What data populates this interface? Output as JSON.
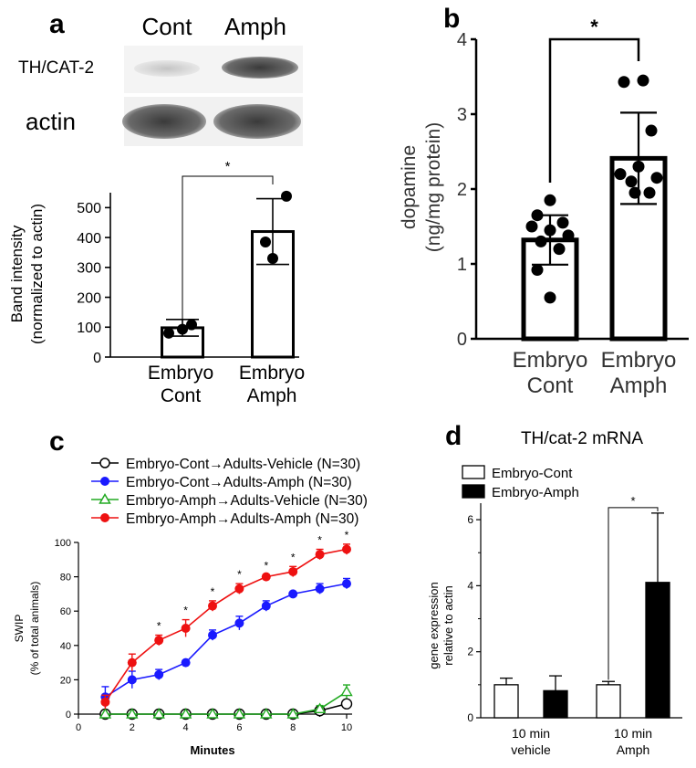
{
  "panels": {
    "a": "a",
    "b": "b",
    "c": "c",
    "d": "d"
  },
  "blot": {
    "lane_labels": [
      "Cont",
      "Amph"
    ],
    "row_labels": [
      "TH/CAT-2",
      "actin"
    ]
  },
  "chart_data": [
    {
      "id": "a",
      "type": "bar",
      "categories": [
        [
          "Embryo",
          "Cont"
        ],
        [
          "Embryo",
          "Amph"
        ]
      ],
      "values": [
        98,
        420
      ],
      "errors": [
        28,
        110
      ],
      "points": [
        [
          80,
          93,
          108
        ],
        [
          330,
          385,
          538
        ]
      ],
      "ylabel": [
        "Band intensity",
        "(normalized to actin)"
      ],
      "ylim": [
        0,
        550
      ],
      "yticks": [
        0,
        100,
        200,
        300,
        400,
        500
      ],
      "significance": "*",
      "colors": {
        "bar_fill": "#ffffff",
        "bar_edge": "#000000",
        "points": "#000000"
      }
    },
    {
      "id": "b",
      "type": "bar",
      "categories": [
        [
          "Embryo",
          "Cont"
        ],
        [
          "Embryo",
          "Amph"
        ]
      ],
      "values": [
        1.32,
        2.41
      ],
      "errors": [
        0.33,
        0.61
      ],
      "points": [
        [
          1.85,
          1.65,
          1.55,
          1.5,
          1.45,
          1.38,
          1.3,
          1.2,
          0.92,
          0.55
        ],
        [
          3.45,
          3.43,
          2.78,
          2.3,
          2.2,
          2.15,
          2.1,
          1.95,
          1.95
        ]
      ],
      "ylabel": [
        "dopamine",
        "(ng/mg protein)"
      ],
      "ylim": [
        0,
        4
      ],
      "yticks": [
        0,
        1,
        2,
        3,
        4
      ],
      "significance": "*",
      "colors": {
        "bar_fill": "#ffffff",
        "bar_edge": "#000000",
        "points": "#000000"
      }
    },
    {
      "id": "c",
      "type": "line",
      "x": [
        1,
        2,
        3,
        4,
        5,
        6,
        7,
        8,
        9,
        10
      ],
      "xlabel": "Minutes",
      "ylabel": [
        "SWIP",
        "(% of total animals)"
      ],
      "xlim": [
        0,
        10
      ],
      "ylim": [
        0,
        100
      ],
      "xticks": [
        0,
        2,
        4,
        6,
        8,
        10
      ],
      "yticks": [
        0,
        20,
        40,
        60,
        80,
        100
      ],
      "series": [
        {
          "name": "Embryo-Cont→Adults-Vehicle (N=30)",
          "color": "#000000",
          "marker": "circle-open",
          "values": [
            0,
            0,
            0,
            0,
            0,
            0,
            0,
            0,
            2,
            6
          ],
          "errors": [
            0,
            0,
            0,
            0,
            0,
            0,
            0,
            0,
            1,
            2
          ]
        },
        {
          "name": "Embryo-Cont→Adults-Amph (N=30)",
          "color": "#1a1aff",
          "marker": "circle",
          "values": [
            10,
            20,
            23,
            30,
            46,
            53,
            63,
            70,
            73,
            76
          ],
          "errors": [
            6,
            5,
            3,
            0,
            3,
            4,
            3,
            0,
            3,
            3
          ]
        },
        {
          "name": "Embryo-Amph→Adults-Vehicle (N=30)",
          "color": "#22aa22",
          "marker": "triangle-open",
          "values": [
            0,
            0,
            0,
            0,
            0,
            0,
            0,
            0,
            3,
            13
          ],
          "errors": [
            0,
            0,
            0,
            0,
            0,
            0,
            0,
            0,
            2,
            4
          ]
        },
        {
          "name": "Embryo-Amph→Adults-Amph (N=30)",
          "color": "#ee1111",
          "marker": "circle",
          "values": [
            7,
            30,
            43,
            50,
            63,
            73,
            80,
            83,
            93,
            96
          ],
          "errors": [
            4,
            5,
            3,
            5,
            3,
            3,
            1,
            3,
            3,
            3
          ]
        }
      ],
      "stars_at": [
        3,
        4,
        5,
        6,
        7,
        8,
        9,
        10
      ],
      "star": "*"
    },
    {
      "id": "d",
      "type": "bar",
      "title": "TH/cat-2 mRNA",
      "categories": [
        [
          "10 min",
          "vehicle"
        ],
        [
          "10 min",
          "Amph"
        ]
      ],
      "ylabel": [
        "gene expression",
        "relative to actin"
      ],
      "ylim": [
        0,
        6.5
      ],
      "yticks": [
        0,
        2,
        4,
        6
      ],
      "series": [
        {
          "name": "Embryo-Cont",
          "color": "#ffffff",
          "values": [
            1.0,
            1.0
          ],
          "errors": [
            0.2,
            0.1
          ]
        },
        {
          "name": "Embryo-Amph",
          "color": "#000000",
          "values": [
            0.82,
            4.1
          ],
          "errors": [
            0.45,
            2.1
          ]
        }
      ],
      "significance": "*"
    }
  ]
}
